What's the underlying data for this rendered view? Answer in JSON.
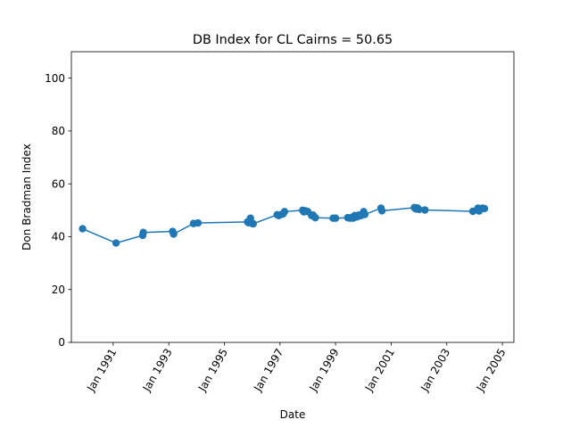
{
  "chart_data": {
    "type": "line",
    "title": "DB Index for CL Cairns = 50.65",
    "xlabel": "Date",
    "ylabel": "Don Bradman Index",
    "xlim": [
      "1989-07-01",
      "2005-06-01"
    ],
    "ylim": [
      0,
      110
    ],
    "xticks": [
      "Jan 1991",
      "Jan 1993",
      "Jan 1995",
      "Jan 1997",
      "Jan 1999",
      "Jan 2001",
      "Jan 2003",
      "Jan 2005"
    ],
    "xtick_dates": [
      "1991-01-01",
      "1993-01-01",
      "1995-01-01",
      "1997-01-01",
      "1999-01-01",
      "2001-01-01",
      "2003-01-01",
      "2005-01-01"
    ],
    "yticks": [
      0,
      20,
      40,
      60,
      80,
      100
    ],
    "grid": false,
    "legend": "none",
    "color": "#1f77b4",
    "series": [
      {
        "x": [
          "1989-11-25",
          "1991-02-08",
          "1992-01-24",
          "1992-02-01",
          "1993-02-20",
          "1993-03-05",
          "1993-11-22",
          "1994-01-20",
          "1995-11-01",
          "1995-11-15",
          "1995-11-25",
          "1995-12-10",
          "1996-01-01",
          "1996-01-15",
          "1996-11-25",
          "1996-12-15",
          "1997-01-25",
          "1997-02-10",
          "1997-03-01",
          "1997-10-25",
          "1997-11-10",
          "1997-12-01",
          "1998-01-01",
          "1998-02-20",
          "1998-03-10",
          "1998-04-10",
          "1998-12-01",
          "1999-01-01",
          "1999-06-10",
          "1999-07-10",
          "1999-08-01",
          "1999-08-20",
          "1999-09-10",
          "1999-10-10",
          "1999-11-01",
          "1999-12-01",
          "2000-01-05",
          "2000-01-20",
          "2000-08-20",
          "2000-09-01",
          "2001-11-01",
          "2001-11-20",
          "2001-12-10",
          "2002-01-01",
          "2002-03-20",
          "2003-12-10",
          "2004-02-15",
          "2004-03-01",
          "2004-04-15",
          "2004-05-10"
        ],
        "y": [
          43.0,
          37.6,
          40.5,
          41.6,
          42.0,
          41.0,
          45.0,
          45.2,
          45.6,
          45.3,
          46.0,
          47.0,
          45.0,
          44.9,
          48.3,
          48.0,
          48.5,
          48.6,
          49.5,
          50.0,
          49.4,
          49.8,
          49.5,
          48.0,
          48.2,
          47.2,
          47.0,
          47.0,
          47.2,
          47.0,
          47.3,
          47.0,
          48.0,
          47.5,
          48.2,
          48.0,
          49.5,
          48.4,
          50.8,
          49.8,
          51.0,
          50.5,
          50.9,
          50.3,
          50.1,
          49.6,
          50.8,
          49.7,
          50.8,
          50.65
        ]
      }
    ]
  }
}
